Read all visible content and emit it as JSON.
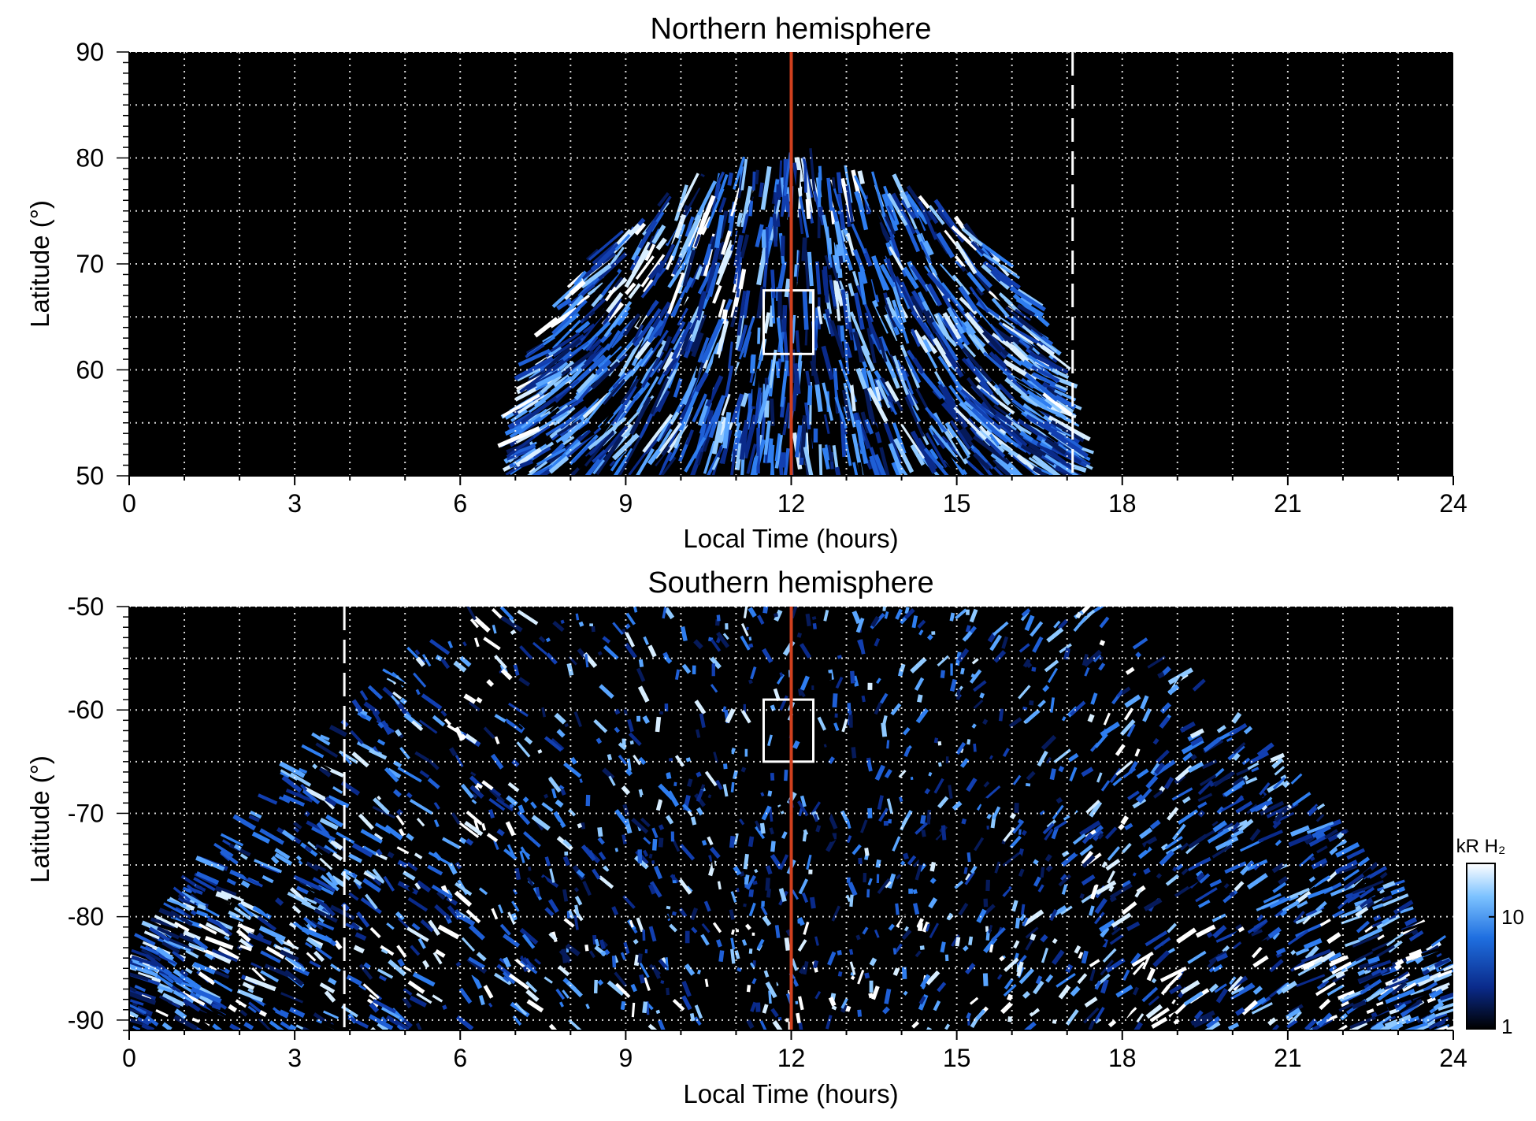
{
  "chart_data": [
    {
      "type": "heatmap",
      "title": "Northern hemisphere",
      "xlabel": "Local Time (hours)",
      "ylabel": "Latitude (°)",
      "xlim": [
        0,
        24
      ],
      "ylim": [
        50,
        90
      ],
      "x_ticks": [
        0,
        3,
        6,
        9,
        12,
        15,
        18,
        21,
        24
      ],
      "y_ticks": [
        50,
        60,
        70,
        80,
        90
      ],
      "grid": true,
      "reference_line_local_time": 12,
      "reference_line_color": "#d0401e",
      "dashed_marker_local_time": 17.1,
      "box": {
        "lt_range": [
          11.5,
          12.4
        ],
        "lat_range": [
          61.5,
          67.5
        ]
      },
      "emission_region": {
        "lt_range": [
          7.0,
          17.2
        ],
        "edge_lat_at_noon": 79,
        "description_shape": "dome"
      }
    },
    {
      "type": "heatmap",
      "title": "Southern hemisphere",
      "xlabel": "Local Time (hours)",
      "ylabel": "Latitude (°)",
      "xlim": [
        0,
        24
      ],
      "ylim": [
        -91,
        -50
      ],
      "x_ticks": [
        0,
        3,
        6,
        9,
        12,
        15,
        18,
        21,
        24
      ],
      "y_ticks": [
        -50,
        -60,
        -70,
        -80,
        -90
      ],
      "grid": true,
      "reference_line_local_time": 12,
      "reference_line_color": "#d0401e",
      "dashed_marker_local_time": 3.9,
      "box": {
        "lt_range": [
          11.5,
          12.4
        ],
        "lat_range": [
          -65,
          -59
        ]
      },
      "emission_region": {
        "lt_range": [
          0,
          24
        ],
        "shape": "bowl"
      }
    }
  ],
  "colorbar": {
    "label": "kR H₂",
    "ticks": [
      1,
      10
    ],
    "scale": "log",
    "colors": [
      "#000000",
      "#0a2a8a",
      "#1f6fe0",
      "#7cc2ff",
      "#ffffff"
    ]
  }
}
